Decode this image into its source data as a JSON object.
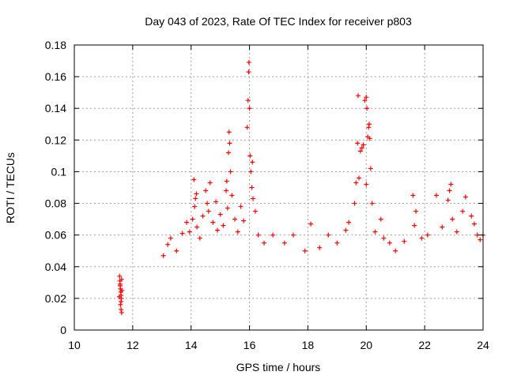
{
  "chart_data": {
    "type": "scatter",
    "title": "Day 043 of 2023, Rate Of TEC Index for receiver p803",
    "xlabel": "GPS time / hours",
    "ylabel": "ROTI / TECUs",
    "xlim": [
      10,
      24
    ],
    "ylim": [
      0,
      0.18
    ],
    "xticks": [
      10,
      12,
      14,
      16,
      18,
      20,
      22,
      24
    ],
    "xtick_labels": [
      "10",
      "12",
      "14",
      "16",
      "18",
      "20",
      "22",
      "24"
    ],
    "yticks": [
      0,
      0.02,
      0.04,
      0.06,
      0.08,
      0.1,
      0.12,
      0.14,
      0.16,
      0.18
    ],
    "ytick_labels": [
      "0",
      "0.02",
      "0.04",
      "0.06",
      "0.08",
      "0.1",
      "0.12",
      "0.14",
      "0.16",
      "0.18"
    ],
    "grid": true,
    "marker": "+",
    "marker_color": "#ff0000",
    "series": [
      {
        "name": "ROTI p803",
        "points": [
          [
            11.55,
            0.034
          ],
          [
            11.56,
            0.031
          ],
          [
            11.57,
            0.028
          ],
          [
            11.58,
            0.026
          ],
          [
            11.59,
            0.024
          ],
          [
            11.6,
            0.022
          ],
          [
            11.61,
            0.02
          ],
          [
            11.6,
            0.018
          ],
          [
            11.58,
            0.016
          ],
          [
            11.6,
            0.013
          ],
          [
            11.62,
            0.011
          ],
          [
            11.57,
            0.029
          ],
          [
            11.63,
            0.025
          ],
          [
            11.54,
            0.021
          ],
          [
            11.62,
            0.032
          ],
          [
            13.05,
            0.047
          ],
          [
            13.2,
            0.054
          ],
          [
            13.3,
            0.058
          ],
          [
            13.5,
            0.05
          ],
          [
            13.7,
            0.061
          ],
          [
            13.85,
            0.068
          ],
          [
            13.95,
            0.062
          ],
          [
            14.05,
            0.07
          ],
          [
            14.12,
            0.078
          ],
          [
            14.15,
            0.083
          ],
          [
            14.1,
            0.095
          ],
          [
            14.18,
            0.086
          ],
          [
            14.2,
            0.065
          ],
          [
            14.3,
            0.058
          ],
          [
            14.4,
            0.072
          ],
          [
            14.5,
            0.088
          ],
          [
            14.55,
            0.08
          ],
          [
            14.6,
            0.075
          ],
          [
            14.65,
            0.093
          ],
          [
            14.75,
            0.068
          ],
          [
            14.85,
            0.081
          ],
          [
            14.9,
            0.063
          ],
          [
            15.0,
            0.073
          ],
          [
            15.1,
            0.066
          ],
          [
            15.2,
            0.088
          ],
          [
            15.22,
            0.094
          ],
          [
            15.25,
            0.077
          ],
          [
            15.28,
            0.112
          ],
          [
            15.3,
            0.125
          ],
          [
            15.32,
            0.118
          ],
          [
            15.35,
            0.1
          ],
          [
            15.4,
            0.085
          ],
          [
            15.5,
            0.07
          ],
          [
            15.6,
            0.062
          ],
          [
            15.7,
            0.078
          ],
          [
            15.8,
            0.069
          ],
          [
            15.92,
            0.128
          ],
          [
            15.95,
            0.145
          ],
          [
            15.97,
            0.163
          ],
          [
            15.98,
            0.169
          ],
          [
            16.0,
            0.14
          ],
          [
            16.02,
            0.11
          ],
          [
            16.05,
            0.1
          ],
          [
            16.08,
            0.09
          ],
          [
            16.1,
            0.106
          ],
          [
            16.12,
            0.083
          ],
          [
            16.2,
            0.075
          ],
          [
            16.3,
            0.06
          ],
          [
            16.5,
            0.055
          ],
          [
            16.8,
            0.06
          ],
          [
            17.2,
            0.055
          ],
          [
            17.5,
            0.06
          ],
          [
            17.9,
            0.05
          ],
          [
            18.1,
            0.067
          ],
          [
            18.4,
            0.052
          ],
          [
            18.7,
            0.06
          ],
          [
            19.0,
            0.055
          ],
          [
            19.3,
            0.063
          ],
          [
            19.4,
            0.068
          ],
          [
            19.6,
            0.08
          ],
          [
            19.65,
            0.093
          ],
          [
            19.7,
            0.118
          ],
          [
            19.72,
            0.148
          ],
          [
            19.75,
            0.096
          ],
          [
            19.8,
            0.113
          ],
          [
            19.85,
            0.115
          ],
          [
            19.9,
            0.117
          ],
          [
            19.95,
            0.145
          ],
          [
            20.0,
            0.147
          ],
          [
            20.02,
            0.14
          ],
          [
            20.05,
            0.122
          ],
          [
            20.08,
            0.128
          ],
          [
            20.1,
            0.13
          ],
          [
            20.12,
            0.121
          ],
          [
            20.0,
            0.092
          ],
          [
            20.15,
            0.102
          ],
          [
            20.2,
            0.08
          ],
          [
            20.3,
            0.062
          ],
          [
            20.5,
            0.07
          ],
          [
            20.6,
            0.058
          ],
          [
            20.8,
            0.055
          ],
          [
            21.0,
            0.05
          ],
          [
            21.3,
            0.056
          ],
          [
            21.6,
            0.085
          ],
          [
            21.7,
            0.075
          ],
          [
            21.65,
            0.066
          ],
          [
            21.9,
            0.058
          ],
          [
            22.1,
            0.06
          ],
          [
            22.4,
            0.085
          ],
          [
            22.6,
            0.065
          ],
          [
            22.8,
            0.082
          ],
          [
            22.85,
            0.088
          ],
          [
            22.9,
            0.092
          ],
          [
            22.95,
            0.07
          ],
          [
            23.1,
            0.062
          ],
          [
            23.3,
            0.075
          ],
          [
            23.4,
            0.084
          ],
          [
            23.6,
            0.072
          ],
          [
            23.7,
            0.067
          ],
          [
            23.8,
            0.06
          ],
          [
            23.9,
            0.057
          ],
          [
            24.0,
            0.06
          ]
        ]
      }
    ]
  }
}
